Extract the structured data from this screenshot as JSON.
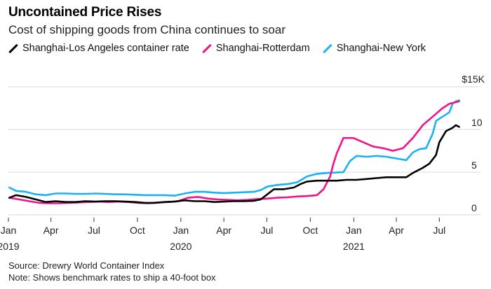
{
  "title": "Uncontained Price Rises",
  "subtitle": "Cost of shipping goods from China continues to soar",
  "notes": {
    "source": "Source: Drewry World Container Index",
    "note": "Note: Shows benchmark rates to ship a 40-foot box"
  },
  "chart_data": {
    "type": "line",
    "y_unit_label": "$15K",
    "ylim": [
      0,
      15000
    ],
    "yticks": [
      {
        "label": "0",
        "value": 0
      },
      {
        "label": "5",
        "value": 5000
      },
      {
        "label": "10",
        "value": 10000
      }
    ],
    "xlim": [
      "2019-01-01",
      "2021-08-20"
    ],
    "xticks": [
      {
        "label": "Jan",
        "date": "2019-01-01",
        "year": "2019"
      },
      {
        "label": "Apr",
        "date": "2019-04-01"
      },
      {
        "label": "Jul",
        "date": "2019-07-01"
      },
      {
        "label": "Oct",
        "date": "2019-10-01"
      },
      {
        "label": "Jan",
        "date": "2020-01-01",
        "year": "2020"
      },
      {
        "label": "Apr",
        "date": "2020-04-01"
      },
      {
        "label": "Jul",
        "date": "2020-07-01"
      },
      {
        "label": "Oct",
        "date": "2020-10-01"
      },
      {
        "label": "Jan",
        "date": "2021-01-01",
        "year": "2021"
      },
      {
        "label": "Apr",
        "date": "2021-04-01"
      },
      {
        "label": "Jul",
        "date": "2021-07-01"
      }
    ],
    "grid": "horizontal",
    "legend_position": "top",
    "series": [
      {
        "name": "Shanghai-Los Angeles container rate",
        "color": "#000000",
        "points": [
          [
            "2019-01-03",
            2000
          ],
          [
            "2019-01-17",
            2300
          ],
          [
            "2019-02-07",
            2100
          ],
          [
            "2019-02-28",
            1800
          ],
          [
            "2019-03-21",
            1500
          ],
          [
            "2019-04-11",
            1600
          ],
          [
            "2019-05-02",
            1500
          ],
          [
            "2019-05-23",
            1500
          ],
          [
            "2019-06-13",
            1600
          ],
          [
            "2019-07-04",
            1550
          ],
          [
            "2019-07-25",
            1600
          ],
          [
            "2019-08-15",
            1600
          ],
          [
            "2019-09-05",
            1550
          ],
          [
            "2019-09-26",
            1500
          ],
          [
            "2019-10-17",
            1400
          ],
          [
            "2019-11-07",
            1400
          ],
          [
            "2019-11-28",
            1500
          ],
          [
            "2019-12-19",
            1550
          ],
          [
            "2020-01-09",
            1700
          ],
          [
            "2020-01-30",
            1600
          ],
          [
            "2020-02-20",
            1600
          ],
          [
            "2020-03-12",
            1500
          ],
          [
            "2020-04-02",
            1550
          ],
          [
            "2020-04-23",
            1600
          ],
          [
            "2020-05-14",
            1600
          ],
          [
            "2020-06-04",
            1650
          ],
          [
            "2020-06-18",
            1800
          ],
          [
            "2020-07-02",
            2400
          ],
          [
            "2020-07-16",
            3000
          ],
          [
            "2020-08-06",
            3000
          ],
          [
            "2020-08-27",
            3200
          ],
          [
            "2020-09-10",
            3600
          ],
          [
            "2020-09-24",
            3900
          ],
          [
            "2020-10-15",
            4000
          ],
          [
            "2020-11-05",
            4000
          ],
          [
            "2020-11-26",
            4000
          ],
          [
            "2020-12-17",
            4100
          ],
          [
            "2021-01-07",
            4100
          ],
          [
            "2021-01-28",
            4200
          ],
          [
            "2021-02-18",
            4300
          ],
          [
            "2021-03-11",
            4400
          ],
          [
            "2021-04-01",
            4400
          ],
          [
            "2021-04-22",
            4400
          ],
          [
            "2021-05-06",
            4900
          ],
          [
            "2021-05-27",
            5500
          ],
          [
            "2021-06-10",
            6000
          ],
          [
            "2021-06-24",
            7000
          ],
          [
            "2021-07-01",
            8500
          ],
          [
            "2021-07-15",
            9800
          ],
          [
            "2021-07-29",
            10200
          ],
          [
            "2021-08-05",
            10500
          ],
          [
            "2021-08-12",
            10300
          ]
        ]
      },
      {
        "name": "Shanghai-Rotterdam",
        "color": "#f0148c",
        "points": [
          [
            "2019-01-03",
            2000
          ],
          [
            "2019-01-24",
            1800
          ],
          [
            "2019-02-14",
            1600
          ],
          [
            "2019-03-07",
            1400
          ],
          [
            "2019-03-28",
            1350
          ],
          [
            "2019-04-18",
            1350
          ],
          [
            "2019-05-09",
            1400
          ],
          [
            "2019-05-30",
            1450
          ],
          [
            "2019-06-20",
            1500
          ],
          [
            "2019-07-11",
            1550
          ],
          [
            "2019-08-01",
            1500
          ],
          [
            "2019-08-22",
            1550
          ],
          [
            "2019-09-12",
            1500
          ],
          [
            "2019-10-03",
            1400
          ],
          [
            "2019-10-24",
            1350
          ],
          [
            "2019-11-14",
            1450
          ],
          [
            "2019-12-05",
            1500
          ],
          [
            "2019-12-26",
            1600
          ],
          [
            "2020-01-16",
            2000
          ],
          [
            "2020-02-06",
            2100
          ],
          [
            "2020-02-27",
            1900
          ],
          [
            "2020-03-19",
            1800
          ],
          [
            "2020-04-09",
            1750
          ],
          [
            "2020-04-30",
            1700
          ],
          [
            "2020-05-21",
            1750
          ],
          [
            "2020-06-11",
            1850
          ],
          [
            "2020-07-02",
            1900
          ],
          [
            "2020-07-23",
            2000
          ],
          [
            "2020-08-13",
            2050
          ],
          [
            "2020-09-03",
            2150
          ],
          [
            "2020-09-24",
            2200
          ],
          [
            "2020-10-15",
            2300
          ],
          [
            "2020-10-29",
            3000
          ],
          [
            "2020-11-12",
            4500
          ],
          [
            "2020-11-19",
            6000
          ],
          [
            "2020-11-26",
            7200
          ],
          [
            "2020-12-10",
            9000
          ],
          [
            "2020-12-31",
            9000
          ],
          [
            "2021-01-21",
            8500
          ],
          [
            "2021-02-11",
            8000
          ],
          [
            "2021-03-04",
            7800
          ],
          [
            "2021-03-25",
            7500
          ],
          [
            "2021-04-15",
            7800
          ],
          [
            "2021-05-06",
            9000
          ],
          [
            "2021-05-27",
            10500
          ],
          [
            "2021-06-17",
            11500
          ],
          [
            "2021-07-08",
            12500
          ],
          [
            "2021-07-22",
            13000
          ],
          [
            "2021-08-05",
            13200
          ],
          [
            "2021-08-12",
            13300
          ]
        ]
      },
      {
        "name": "Shanghai-New York",
        "color": "#1ab2f2",
        "points": [
          [
            "2019-01-03",
            3200
          ],
          [
            "2019-01-17",
            2800
          ],
          [
            "2019-02-07",
            2700
          ],
          [
            "2019-02-28",
            2400
          ],
          [
            "2019-03-21",
            2300
          ],
          [
            "2019-04-11",
            2500
          ],
          [
            "2019-05-02",
            2500
          ],
          [
            "2019-05-23",
            2450
          ],
          [
            "2019-06-13",
            2450
          ],
          [
            "2019-07-04",
            2500
          ],
          [
            "2019-07-25",
            2450
          ],
          [
            "2019-08-15",
            2400
          ],
          [
            "2019-09-05",
            2400
          ],
          [
            "2019-09-26",
            2350
          ],
          [
            "2019-10-17",
            2300
          ],
          [
            "2019-11-07",
            2300
          ],
          [
            "2019-11-28",
            2300
          ],
          [
            "2019-12-19",
            2250
          ],
          [
            "2020-01-09",
            2500
          ],
          [
            "2020-01-30",
            2700
          ],
          [
            "2020-02-20",
            2700
          ],
          [
            "2020-03-12",
            2600
          ],
          [
            "2020-04-02",
            2550
          ],
          [
            "2020-04-23",
            2600
          ],
          [
            "2020-05-14",
            2650
          ],
          [
            "2020-06-04",
            2700
          ],
          [
            "2020-06-18",
            2900
          ],
          [
            "2020-07-02",
            3300
          ],
          [
            "2020-07-23",
            3500
          ],
          [
            "2020-08-13",
            3600
          ],
          [
            "2020-09-03",
            3800
          ],
          [
            "2020-09-24",
            4500
          ],
          [
            "2020-10-15",
            4800
          ],
          [
            "2020-11-05",
            4900
          ],
          [
            "2020-11-26",
            4950
          ],
          [
            "2020-12-10",
            5000
          ],
          [
            "2020-12-24",
            6300
          ],
          [
            "2021-01-07",
            6900
          ],
          [
            "2021-01-28",
            6800
          ],
          [
            "2021-02-18",
            6900
          ],
          [
            "2021-03-11",
            6800
          ],
          [
            "2021-04-01",
            6600
          ],
          [
            "2021-04-22",
            6400
          ],
          [
            "2021-05-06",
            7300
          ],
          [
            "2021-05-20",
            7700
          ],
          [
            "2021-06-03",
            7800
          ],
          [
            "2021-06-17",
            9500
          ],
          [
            "2021-06-24",
            11000
          ],
          [
            "2021-07-08",
            11500
          ],
          [
            "2021-07-22",
            12000
          ],
          [
            "2021-07-29",
            13000
          ],
          [
            "2021-08-05",
            13300
          ],
          [
            "2021-08-12",
            13400
          ]
        ]
      }
    ]
  }
}
